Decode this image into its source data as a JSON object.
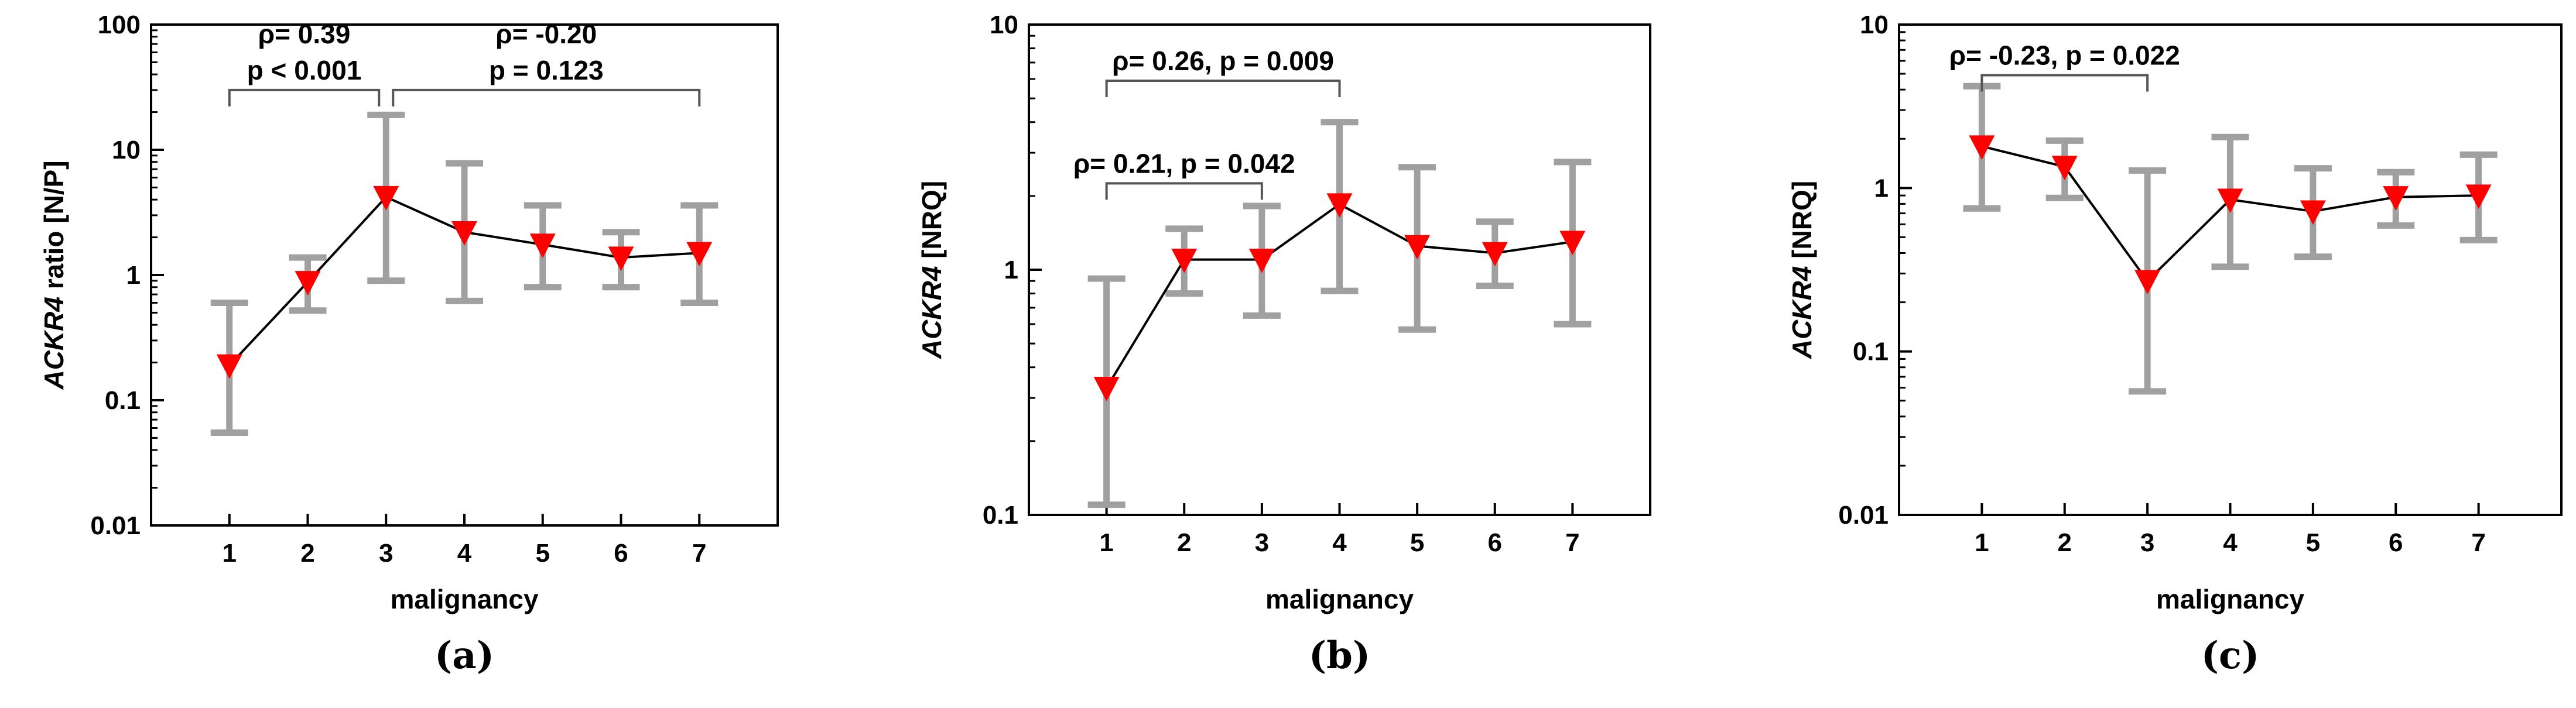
{
  "colors": {
    "marker": "#ff0000",
    "errorbar": "#a0a0a0",
    "line": "#000000",
    "frame": "#000000",
    "bracket": "#555555"
  },
  "chart_data": [
    {
      "type": "line",
      "panel_label": "(a)",
      "xlabel": "malignancy",
      "ylabel_gene": "ACKR4",
      "ylabel_rest": "ratio [N/P]",
      "yscale": "log",
      "ylim": [
        0.01,
        100
      ],
      "yticks": [
        0.01,
        0.1,
        1,
        10,
        100
      ],
      "ytick_labels": [
        "0.01",
        "0.1",
        "1",
        "10",
        "100"
      ],
      "x": [
        1,
        2,
        3,
        4,
        5,
        6,
        7
      ],
      "xtick_labels": [
        "1",
        "2",
        "3",
        "4",
        "5",
        "6",
        "7"
      ],
      "xlim": [
        0,
        8
      ],
      "y": [
        0.19,
        0.88,
        4.2,
        2.2,
        1.75,
        1.38,
        1.5
      ],
      "err_low": [
        0.055,
        0.52,
        0.9,
        0.62,
        0.8,
        0.8,
        0.6
      ],
      "err_high": [
        0.6,
        1.38,
        19,
        7.8,
        3.6,
        2.2,
        3.6
      ],
      "annotations": [
        {
          "x1": 1,
          "x2": 3,
          "bracket_y": 30,
          "lines": [
            "ρ= 0.39",
            "p < 0.001"
          ]
        },
        {
          "x1": 3,
          "x2": 7,
          "bracket_y": 30,
          "lines": [
            "ρ= -0.20",
            "p = 0.123"
          ]
        }
      ]
    },
    {
      "type": "line",
      "panel_label": "(b)",
      "xlabel": "malignancy",
      "ylabel_gene": "ACKR4",
      "ylabel_rest": "[NRQ]",
      "yscale": "log",
      "ylim": [
        0.1,
        10
      ],
      "yticks": [
        0.1,
        1,
        10
      ],
      "ytick_labels": [
        "0.1",
        "1",
        "10"
      ],
      "x": [
        1,
        2,
        3,
        4,
        5,
        6,
        7
      ],
      "xtick_labels": [
        "1",
        "2",
        "3",
        "4",
        "5",
        "6",
        "7"
      ],
      "xlim": [
        0,
        8
      ],
      "y": [
        0.33,
        1.1,
        1.1,
        1.85,
        1.25,
        1.17,
        1.3
      ],
      "err_low": [
        0.11,
        0.8,
        0.65,
        0.82,
        0.57,
        0.86,
        0.6
      ],
      "err_high": [
        0.92,
        1.47,
        1.82,
        4.0,
        2.62,
        1.57,
        2.75
      ],
      "annotations": [
        {
          "x1": 1,
          "x2": 4,
          "bracket_y": 5.9,
          "lines": [
            "ρ= 0.26, p = 0.009"
          ]
        },
        {
          "x1": 1,
          "x2": 3,
          "bracket_y": 2.25,
          "lines": [
            "ρ= 0.21, p = 0.042"
          ]
        }
      ]
    },
    {
      "type": "line",
      "panel_label": "(c)",
      "xlabel": "malignancy",
      "ylabel_gene": "ACKR4",
      "ylabel_rest": "[NRQ]",
      "yscale": "log",
      "ylim": [
        0.01,
        10
      ],
      "yticks": [
        0.01,
        0.1,
        1,
        10
      ],
      "ytick_labels": [
        "0.01",
        "0.1",
        "1",
        "10"
      ],
      "x": [
        1,
        2,
        3,
        4,
        5,
        6,
        7
      ],
      "xtick_labels": [
        "1",
        "2",
        "3",
        "4",
        "5",
        "6",
        "7"
      ],
      "xlim": [
        0,
        8
      ],
      "y": [
        1.8,
        1.35,
        0.27,
        0.85,
        0.72,
        0.88,
        0.9
      ],
      "err_low": [
        0.75,
        0.87,
        0.057,
        0.33,
        0.38,
        0.59,
        0.48
      ],
      "err_high": [
        4.2,
        1.95,
        1.28,
        2.05,
        1.32,
        1.25,
        1.6
      ],
      "annotations": [
        {
          "x1": 1,
          "x2": 3,
          "bracket_y": 4.9,
          "lines": [
            "ρ= -0.23, p = 0.022"
          ]
        }
      ]
    }
  ]
}
